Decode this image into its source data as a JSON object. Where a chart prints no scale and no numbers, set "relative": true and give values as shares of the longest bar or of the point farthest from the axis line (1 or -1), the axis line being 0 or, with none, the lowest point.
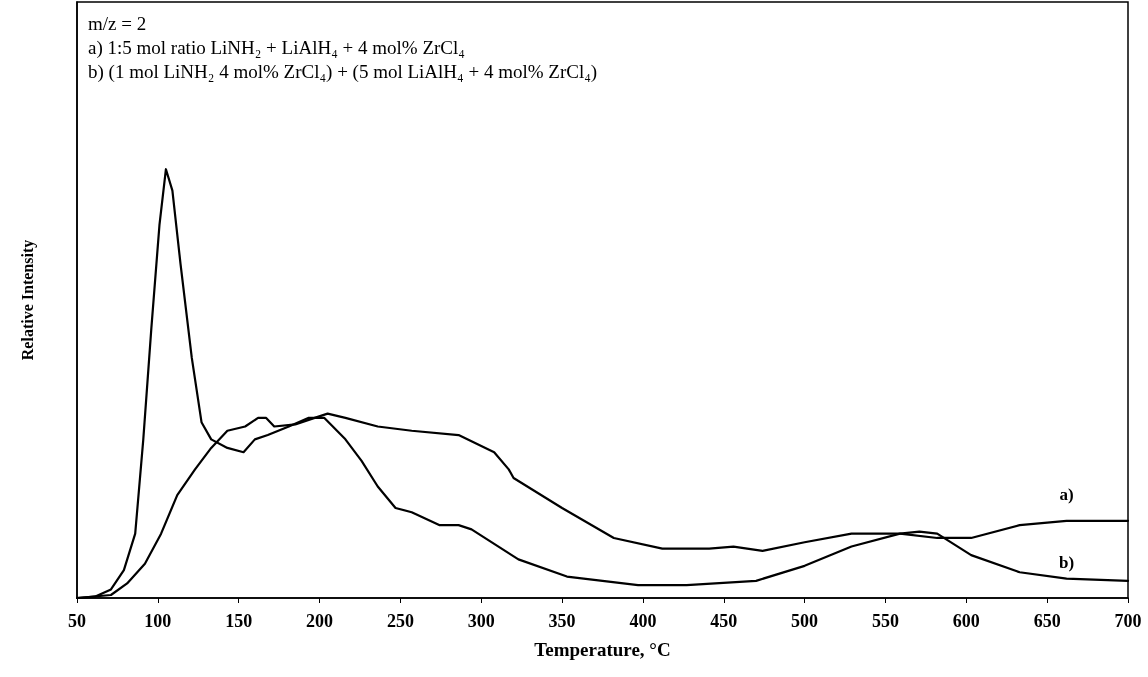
{
  "chart_data": {
    "type": "line",
    "relative": true,
    "xlabel": "Temperature, °C",
    "ylabel": "Relative Intensity",
    "xlim": [
      50,
      700
    ],
    "xticks": [
      50,
      100,
      150,
      200,
      250,
      300,
      350,
      400,
      450,
      500,
      550,
      600,
      650,
      700
    ],
    "grid": false,
    "legend": false,
    "marker": "none",
    "line_style": "solid",
    "annotations": [
      "m/z = 2",
      "a) 1:5 mol ratio LiNH₂ + LiAlH₄ + 4 mol% ZrCl₄",
      "b) (1 mol LiNH₂ 4 mol% ZrCl₄) + (5 mol LiAlH₄ + 4 mol% ZrCl₄)"
    ],
    "series": [
      {
        "name": "a)",
        "color": "#000000",
        "x": [
          50,
          71,
          81,
          92,
          102,
          112,
          123,
          133,
          143,
          154,
          162,
          167,
          172,
          185,
          197,
          205,
          216,
          236,
          257,
          286,
          308,
          317,
          320,
          350,
          382,
          412,
          441,
          456,
          474,
          500,
          529,
          559,
          582,
          603,
          633,
          662,
          700
        ],
        "values": [
          0,
          0.007,
          0.034,
          0.08,
          0.15,
          0.24,
          0.3,
          0.35,
          0.39,
          0.4,
          0.42,
          0.42,
          0.4,
          0.405,
          0.42,
          0.43,
          0.42,
          0.4,
          0.39,
          0.38,
          0.34,
          0.3,
          0.28,
          0.21,
          0.14,
          0.115,
          0.115,
          0.12,
          0.11,
          0.13,
          0.15,
          0.15,
          0.14,
          0.14,
          0.17,
          0.18,
          0.18
        ]
      },
      {
        "name": "b)",
        "color": "#000000",
        "x": [
          50,
          61,
          71,
          79,
          86,
          91,
          96,
          101,
          105,
          109,
          114,
          121,
          127,
          133,
          143,
          153,
          160,
          168,
          181,
          193,
          203,
          216,
          226,
          236,
          247,
          257,
          274,
          286,
          294,
          323,
          353,
          397,
          427,
          470,
          500,
          529,
          559,
          571,
          582,
          603,
          633,
          662,
          700
        ],
        "values": [
          0,
          0.003,
          0.02,
          0.065,
          0.15,
          0.37,
          0.63,
          0.87,
          1.0,
          0.95,
          0.78,
          0.56,
          0.41,
          0.37,
          0.35,
          0.34,
          0.37,
          0.38,
          0.4,
          0.42,
          0.42,
          0.37,
          0.32,
          0.26,
          0.21,
          0.2,
          0.17,
          0.17,
          0.16,
          0.09,
          0.05,
          0.03,
          0.03,
          0.04,
          0.075,
          0.12,
          0.15,
          0.155,
          0.15,
          0.1,
          0.06,
          0.045,
          0.04
        ]
      }
    ]
  }
}
